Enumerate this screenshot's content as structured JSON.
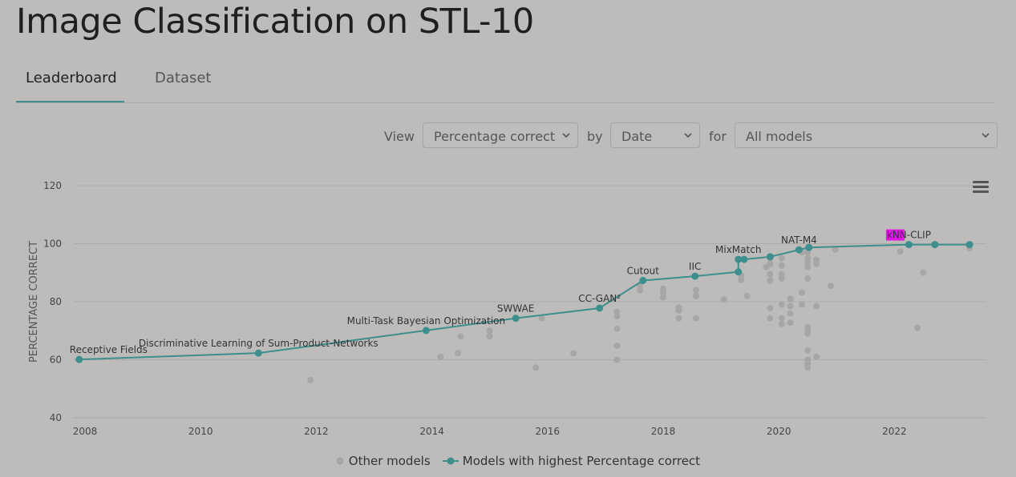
{
  "page": {
    "title": "Image Classification on STL-10",
    "tabs": [
      {
        "label": "Leaderboard",
        "active": true
      },
      {
        "label": "Dataset",
        "active": false
      }
    ]
  },
  "controls": {
    "view_label": "View",
    "view_value": "Percentage correct",
    "by_label": "by",
    "by_value": "Date",
    "for_label": "for",
    "for_value": "All models"
  },
  "colors": {
    "best": "#3d8f8d",
    "other": "#a8a6a4",
    "grid": "#acabaa",
    "highlight": "#e316e3"
  },
  "chart_data": {
    "type": "scatter",
    "ylabel": "PERCENTAGE CORRECT",
    "xlim": [
      2007.8,
      2023.6
    ],
    "ylim": [
      40,
      120
    ],
    "yticks": [
      40,
      60,
      80,
      100,
      120
    ],
    "xticks": [
      2008,
      2010,
      2012,
      2014,
      2016,
      2018,
      2020,
      2022
    ],
    "grid": true,
    "legend_position": "bottom",
    "series": [
      {
        "name": "Other models",
        "points": [
          [
            2011.9,
            53.0
          ],
          [
            2014.15,
            61.0
          ],
          [
            2014.45,
            62.3
          ],
          [
            2014.5,
            68.0
          ],
          [
            2015.0,
            70.0
          ],
          [
            2015.0,
            68.0
          ],
          [
            2015.8,
            57.3
          ],
          [
            2015.9,
            74.3
          ],
          [
            2016.45,
            62.2
          ],
          [
            2017.2,
            76.5
          ],
          [
            2017.2,
            75.0
          ],
          [
            2017.2,
            70.7
          ],
          [
            2017.2,
            64.8
          ],
          [
            2017.2,
            60.0
          ],
          [
            2017.6,
            85.5
          ],
          [
            2017.6,
            84.0
          ],
          [
            2018.0,
            84.5
          ],
          [
            2018.0,
            83.0
          ],
          [
            2018.0,
            81.5
          ],
          [
            2018.27,
            78.0
          ],
          [
            2018.27,
            77.0
          ],
          [
            2018.27,
            74.3
          ],
          [
            2018.57,
            84.0
          ],
          [
            2018.57,
            82.0
          ],
          [
            2018.57,
            74.3
          ],
          [
            2019.05,
            80.8
          ],
          [
            2019.35,
            89.0
          ],
          [
            2019.35,
            87.5
          ],
          [
            2019.45,
            82.0
          ],
          [
            2019.78,
            91.9
          ],
          [
            2019.85,
            95.0
          ],
          [
            2019.85,
            93.0
          ],
          [
            2019.85,
            89.5
          ],
          [
            2019.85,
            87.3
          ],
          [
            2019.85,
            77.8
          ],
          [
            2019.85,
            74.3
          ],
          [
            2020.05,
            95.0
          ],
          [
            2020.05,
            92.5
          ],
          [
            2020.05,
            89.5
          ],
          [
            2020.05,
            88.0
          ],
          [
            2020.05,
            79.0
          ],
          [
            2020.05,
            74.3
          ],
          [
            2020.05,
            72.3
          ],
          [
            2020.2,
            81.0
          ],
          [
            2020.2,
            78.5
          ],
          [
            2020.2,
            76.0
          ],
          [
            2020.2,
            72.8
          ],
          [
            2020.4,
            97.0
          ],
          [
            2020.4,
            83.2
          ],
          [
            2020.4,
            79.0
          ],
          [
            2020.5,
            97.0
          ],
          [
            2020.5,
            95.0
          ],
          [
            2020.5,
            93.5
          ],
          [
            2020.5,
            92.0
          ],
          [
            2020.5,
            88.0
          ],
          [
            2020.5,
            71.3
          ],
          [
            2020.5,
            70.5
          ],
          [
            2020.5,
            69.0
          ],
          [
            2020.5,
            63.2
          ],
          [
            2020.5,
            60.0
          ],
          [
            2020.5,
            58.5
          ],
          [
            2020.5,
            57.3
          ],
          [
            2020.65,
            94.5
          ],
          [
            2020.65,
            93.0
          ],
          [
            2020.65,
            78.5
          ],
          [
            2020.65,
            61.0
          ],
          [
            2020.9,
            85.5
          ],
          [
            2020.98,
            98.0
          ],
          [
            2022.1,
            97.3
          ],
          [
            2022.4,
            71.0
          ],
          [
            2022.5,
            90.0
          ],
          [
            2023.3,
            98.5
          ]
        ]
      },
      {
        "name": "Models with highest Percentage correct",
        "points": [
          [
            2007.9,
            60.1
          ],
          [
            2011.0,
            62.3
          ],
          [
            2013.9,
            70.1
          ],
          [
            2015.45,
            74.3
          ],
          [
            2016.9,
            77.8
          ],
          [
            2017.65,
            87.3
          ],
          [
            2018.55,
            88.8
          ],
          [
            2019.3,
            90.3
          ],
          [
            2019.3,
            94.6
          ],
          [
            2019.4,
            94.6
          ],
          [
            2019.85,
            95.5
          ],
          [
            2020.35,
            97.9
          ],
          [
            2020.52,
            98.7
          ],
          [
            2022.25,
            99.7
          ],
          [
            2022.7,
            99.7
          ],
          [
            2023.3,
            99.7
          ]
        ]
      }
    ],
    "annotations": [
      {
        "text": "Receptive Fields",
        "x": 2007.9,
        "y": 60.1
      },
      {
        "text": "Discriminative Learning of Sum-Product-Networks",
        "x": 2011.0,
        "y": 62.3
      },
      {
        "text": "Multi-Task Bayesian Optimization",
        "x": 2013.9,
        "y": 70.1
      },
      {
        "text": "SWWAE",
        "x": 2015.45,
        "y": 74.3
      },
      {
        "text": "CC-GAN²",
        "x": 2016.9,
        "y": 77.8
      },
      {
        "text": "Cutout",
        "x": 2017.65,
        "y": 87.3
      },
      {
        "text": "IIC",
        "x": 2018.55,
        "y": 88.8
      },
      {
        "text": "MixMatch",
        "x": 2019.3,
        "y": 94.6
      },
      {
        "text": "NAT-M4",
        "x": 2020.35,
        "y": 97.9
      },
      {
        "text": "kNN-CLIP",
        "x": 2022.25,
        "y": 99.7
      }
    ]
  }
}
